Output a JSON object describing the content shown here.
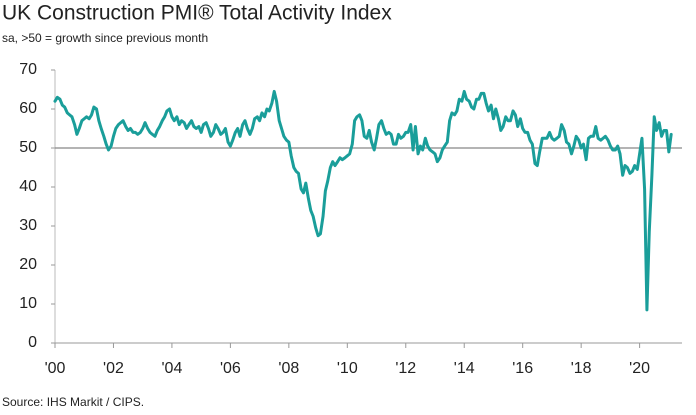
{
  "chart_data": {
    "type": "line",
    "title": "UK Construction PMI® Total Activity Index",
    "subtitle": "sa, >50 = growth since previous month",
    "source": "Source: IHS Markit / CIPS.",
    "color": "#1a9e9a",
    "hline": 50,
    "xlim": [
      2000,
      2021.45
    ],
    "ylim": [
      0,
      70
    ],
    "yticks": [
      0,
      10,
      20,
      30,
      40,
      50,
      60,
      70
    ],
    "xticks": [
      {
        "value": 2000,
        "label": "'00"
      },
      {
        "value": 2002,
        "label": "'02"
      },
      {
        "value": 2004,
        "label": "'04"
      },
      {
        "value": 2006,
        "label": "'06"
      },
      {
        "value": 2008,
        "label": "'08"
      },
      {
        "value": 2010,
        "label": "'10"
      },
      {
        "value": 2012,
        "label": "'12"
      },
      {
        "value": 2014,
        "label": "'14"
      },
      {
        "value": 2016,
        "label": "'16"
      },
      {
        "value": 2018,
        "label": "'18"
      },
      {
        "value": 2020,
        "label": "'20"
      }
    ],
    "x": [
      2000,
      2000.08,
      2000.17,
      2000.25,
      2000.33,
      2000.42,
      2000.5,
      2000.58,
      2000.67,
      2000.75,
      2000.83,
      2000.92,
      2001,
      2001.08,
      2001.17,
      2001.25,
      2001.33,
      2001.42,
      2001.5,
      2001.58,
      2001.67,
      2001.75,
      2001.83,
      2001.92,
      2002,
      2002.08,
      2002.17,
      2002.25,
      2002.33,
      2002.42,
      2002.5,
      2002.58,
      2002.67,
      2002.75,
      2002.83,
      2002.92,
      2003,
      2003.08,
      2003.17,
      2003.25,
      2003.33,
      2003.42,
      2003.5,
      2003.58,
      2003.67,
      2003.75,
      2003.83,
      2003.92,
      2004,
      2004.08,
      2004.17,
      2004.25,
      2004.33,
      2004.42,
      2004.5,
      2004.58,
      2004.67,
      2004.75,
      2004.83,
      2004.92,
      2005,
      2005.08,
      2005.17,
      2005.25,
      2005.33,
      2005.42,
      2005.5,
      2005.58,
      2005.67,
      2005.75,
      2005.83,
      2005.92,
      2006,
      2006.08,
      2006.17,
      2006.25,
      2006.33,
      2006.42,
      2006.5,
      2006.58,
      2006.67,
      2006.75,
      2006.83,
      2006.92,
      2007,
      2007.08,
      2007.17,
      2007.25,
      2007.33,
      2007.42,
      2007.5,
      2007.58,
      2007.67,
      2007.75,
      2007.83,
      2007.92,
      2008,
      2008.08,
      2008.17,
      2008.25,
      2008.33,
      2008.42,
      2008.5,
      2008.58,
      2008.67,
      2008.75,
      2008.83,
      2008.92,
      2009,
      2009.08,
      2009.17,
      2009.25,
      2009.33,
      2009.42,
      2009.5,
      2009.58,
      2009.67,
      2009.75,
      2009.83,
      2009.92,
      2010,
      2010.08,
      2010.17,
      2010.25,
      2010.33,
      2010.42,
      2010.5,
      2010.58,
      2010.67,
      2010.75,
      2010.83,
      2010.92,
      2011,
      2011.08,
      2011.17,
      2011.25,
      2011.33,
      2011.42,
      2011.5,
      2011.58,
      2011.67,
      2011.75,
      2011.83,
      2011.92,
      2012,
      2012.08,
      2012.17,
      2012.25,
      2012.33,
      2012.42,
      2012.5,
      2012.58,
      2012.67,
      2012.75,
      2012.83,
      2012.92,
      2013,
      2013.08,
      2013.17,
      2013.25,
      2013.33,
      2013.42,
      2013.5,
      2013.58,
      2013.67,
      2013.75,
      2013.83,
      2013.92,
      2014,
      2014.08,
      2014.17,
      2014.25,
      2014.33,
      2014.42,
      2014.5,
      2014.58,
      2014.67,
      2014.75,
      2014.83,
      2014.92,
      2015,
      2015.08,
      2015.17,
      2015.25,
      2015.33,
      2015.42,
      2015.5,
      2015.58,
      2015.67,
      2015.75,
      2015.83,
      2015.92,
      2016,
      2016.08,
      2016.17,
      2016.25,
      2016.33,
      2016.42,
      2016.5,
      2016.58,
      2016.67,
      2016.75,
      2016.83,
      2016.92,
      2017,
      2017.08,
      2017.17,
      2017.25,
      2017.33,
      2017.42,
      2017.5,
      2017.58,
      2017.67,
      2017.75,
      2017.83,
      2017.92,
      2018,
      2018.08,
      2018.17,
      2018.25,
      2018.33,
      2018.42,
      2018.5,
      2018.58,
      2018.67,
      2018.75,
      2018.83,
      2018.92,
      2019,
      2019.08,
      2019.17,
      2019.25,
      2019.33,
      2019.42,
      2019.5,
      2019.58,
      2019.67,
      2019.75,
      2019.83,
      2019.92,
      2020,
      2020.08,
      2020.17,
      2020.25,
      2020.33,
      2020.42,
      2020.5,
      2020.58,
      2020.67,
      2020.75,
      2020.83,
      2020.92,
      2021,
      2021.08
    ],
    "values": [
      62.0,
      63.0,
      62.5,
      61.0,
      60.5,
      59.0,
      58.5,
      58.0,
      56.0,
      53.5,
      55.0,
      57.0,
      57.5,
      58.0,
      57.5,
      58.5,
      60.5,
      60.0,
      57.0,
      55.0,
      53.0,
      51.0,
      49.5,
      50.5,
      53.0,
      55.0,
      56.0,
      56.5,
      57.0,
      55.5,
      54.5,
      55.0,
      54.0,
      54.0,
      53.5,
      54.0,
      55.0,
      56.5,
      55.0,
      54.0,
      53.5,
      53.0,
      54.5,
      55.5,
      57.0,
      58.0,
      59.5,
      60.0,
      58.0,
      57.0,
      58.0,
      56.0,
      57.0,
      56.5,
      55.0,
      56.0,
      57.0,
      55.5,
      55.0,
      55.5,
      54.0,
      56.0,
      56.5,
      55.0,
      53.0,
      54.0,
      56.0,
      55.0,
      53.5,
      54.0,
      55.0,
      51.5,
      50.5,
      52.0,
      54.0,
      55.0,
      53.0,
      56.0,
      57.0,
      55.0,
      53.5,
      55.0,
      57.5,
      58.0,
      57.0,
      59.0,
      58.0,
      60.0,
      59.5,
      61.5,
      64.5,
      62.0,
      57.0,
      55.0,
      53.0,
      52.0,
      51.5,
      48.0,
      45.0,
      44.0,
      43.5,
      39.5,
      38.5,
      41.0,
      37.0,
      34.0,
      32.5,
      29.5,
      27.5,
      28.0,
      32.5,
      39.0,
      41.5,
      45.0,
      46.5,
      45.5,
      46.5,
      47.5,
      47.0,
      47.5,
      48.0,
      48.5,
      51.0,
      57.0,
      58.0,
      58.5,
      57.0,
      53.0,
      52.5,
      54.5,
      51.5,
      49.5,
      52.5,
      56.0,
      57.0,
      55.0,
      53.5,
      54.0,
      53.5,
      51.0,
      51.0,
      53.5,
      52.5,
      53.0,
      54.0,
      54.0,
      56.0,
      49.5,
      55.5,
      48.5,
      50.5,
      49.5,
      52.5,
      50.5,
      49.5,
      49.0,
      48.5,
      46.5,
      47.5,
      49.5,
      50.5,
      51.5,
      57.0,
      59.0,
      58.5,
      59.5,
      62.5,
      62.0,
      64.5,
      62.5,
      62.0,
      60.5,
      60.0,
      62.5,
      62.5,
      64.0,
      64.0,
      61.5,
      59.5,
      61.0,
      57.5,
      60.0,
      57.5,
      54.5,
      55.5,
      58.0,
      57.0,
      57.0,
      59.5,
      58.5,
      55.5,
      57.5,
      55.0,
      54.0,
      54.0,
      52.0,
      51.0,
      46.0,
      45.5,
      49.0,
      52.5,
      52.5,
      52.5,
      54.0,
      52.5,
      52.0,
      52.5,
      53.0,
      56.0,
      54.5,
      51.5,
      51.0,
      48.5,
      50.5,
      53.0,
      52.0,
      50.0,
      51.0,
      47.0,
      52.5,
      53.0,
      53.0,
      55.5,
      52.5,
      52.0,
      52.5,
      53.0,
      52.0,
      50.5,
      49.5,
      49.5,
      50.5,
      48.5,
      43.0,
      45.5,
      45.0,
      43.5,
      44.0,
      45.5,
      44.5,
      48.5,
      52.5,
      39.5,
      8.5,
      28.5,
      43.0,
      58.0,
      54.5,
      56.5,
      53.0,
      54.5,
      54.5,
      49.0,
      53.5
    ]
  }
}
